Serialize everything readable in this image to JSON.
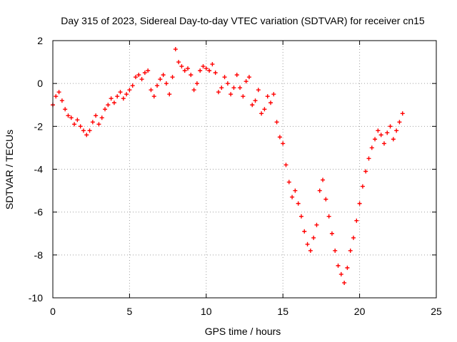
{
  "chart_data": {
    "type": "scatter",
    "title": "Day 315 of 2023, Sidereal Day-to-day VTEC variation (SDTVAR) for receiver cn15",
    "xlabel": "GPS time / hours",
    "ylabel": "SDTVAR / TECUs",
    "xlim": [
      0,
      25
    ],
    "ylim": [
      -10,
      2
    ],
    "xticks": [
      0,
      5,
      10,
      15,
      20,
      25
    ],
    "yticks": [
      -10,
      -8,
      -6,
      -4,
      -2,
      0,
      2
    ],
    "xtick_labels": [
      "0",
      "5",
      "10",
      "15",
      "20",
      "25"
    ],
    "ytick_labels": [
      "-10",
      "-8",
      "-6",
      "-4",
      "-2",
      "0",
      "2"
    ],
    "grid": true,
    "marker": "+",
    "series": [
      {
        "name": "SDTVAR",
        "color": "#ff0000",
        "x": [
          0.0,
          0.2,
          0.4,
          0.6,
          0.8,
          1.0,
          1.2,
          1.4,
          1.6,
          1.8,
          2.0,
          2.2,
          2.4,
          2.6,
          2.8,
          3.0,
          3.2,
          3.4,
          3.6,
          3.8,
          4.0,
          4.2,
          4.4,
          4.6,
          4.8,
          5.0,
          5.2,
          5.4,
          5.6,
          5.8,
          6.0,
          6.2,
          6.4,
          6.6,
          6.8,
          7.0,
          7.2,
          7.4,
          7.6,
          7.8,
          8.0,
          8.2,
          8.4,
          8.6,
          8.8,
          9.0,
          9.2,
          9.4,
          9.6,
          9.8,
          10.0,
          10.2,
          10.4,
          10.6,
          10.8,
          11.0,
          11.2,
          11.4,
          11.6,
          11.8,
          12.0,
          12.2,
          12.4,
          12.6,
          12.8,
          13.0,
          13.2,
          13.4,
          13.6,
          13.8,
          14.0,
          14.2,
          14.4,
          14.6,
          14.8,
          15.0,
          15.2,
          15.4,
          15.6,
          15.8,
          16.0,
          16.2,
          16.4,
          16.6,
          16.8,
          17.0,
          17.2,
          17.4,
          17.6,
          17.8,
          18.0,
          18.2,
          18.4,
          18.6,
          18.8,
          19.0,
          19.2,
          19.4,
          19.6,
          19.8,
          20.0,
          20.2,
          20.4,
          20.6,
          20.8,
          21.0,
          21.2,
          21.4,
          21.6,
          21.8,
          22.0,
          22.2,
          22.4,
          22.6,
          22.8
        ],
        "y": [
          -1.0,
          -0.6,
          -0.4,
          -0.8,
          -1.2,
          -1.5,
          -1.6,
          -1.9,
          -1.7,
          -2.0,
          -2.2,
          -2.4,
          -2.2,
          -1.8,
          -1.5,
          -1.9,
          -1.6,
          -1.2,
          -1.0,
          -0.7,
          -0.9,
          -0.6,
          -0.4,
          -0.7,
          -0.5,
          -0.3,
          -0.1,
          0.3,
          0.4,
          0.2,
          0.5,
          0.6,
          -0.3,
          -0.6,
          -0.1,
          0.2,
          0.4,
          0.0,
          -0.5,
          0.3,
          1.6,
          1.0,
          0.8,
          0.6,
          0.7,
          0.4,
          -0.3,
          0.0,
          0.6,
          0.8,
          0.7,
          0.6,
          0.9,
          0.5,
          -0.4,
          -0.2,
          0.3,
          0.0,
          -0.5,
          -0.2,
          0.4,
          -0.2,
          -0.6,
          0.1,
          0.3,
          -1.0,
          -0.8,
          -0.3,
          -1.4,
          -1.2,
          -0.6,
          -0.9,
          -0.5,
          -1.8,
          -2.5,
          -2.8,
          -3.8,
          -4.6,
          -5.3,
          -5.0,
          -5.6,
          -6.2,
          -6.9,
          -7.5,
          -7.8,
          -7.2,
          -6.6,
          -5.0,
          -4.5,
          -5.4,
          -6.2,
          -7.0,
          -7.8,
          -8.5,
          -8.9,
          -9.3,
          -8.6,
          -7.8,
          -7.2,
          -6.4,
          -5.6,
          -4.8,
          -4.1,
          -3.5,
          -3.0,
          -2.6,
          -2.2,
          -2.4,
          -2.8,
          -2.3,
          -2.0,
          -2.6,
          -2.2,
          -1.8,
          -1.4
        ]
      }
    ]
  }
}
